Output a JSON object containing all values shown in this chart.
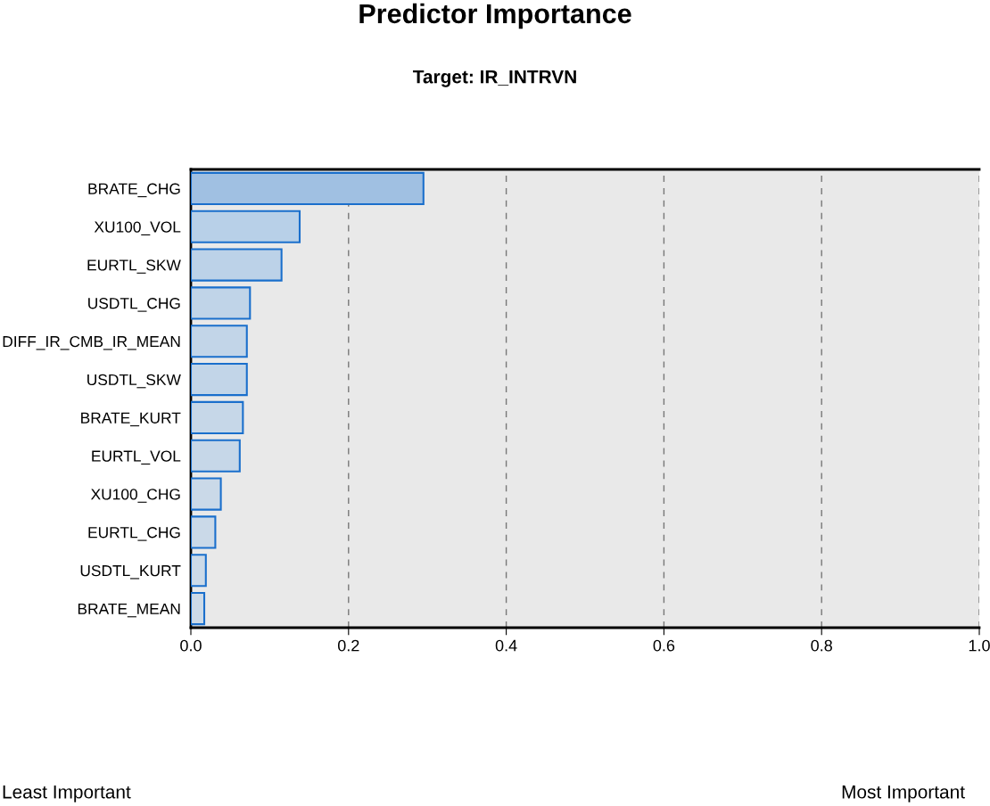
{
  "chart_data": {
    "type": "bar",
    "orientation": "horizontal",
    "title": "Predictor Importance",
    "subtitle": "Target: IR_INTRVN",
    "categories": [
      "BRATE_CHG",
      "XU100_VOL",
      "EURTL_SKW",
      "USDTL_CHG",
      "DIFF_IR_CMB_IR_MEAN",
      "USDTL_SKW",
      "BRATE_KURT",
      "EURTL_VOL",
      "XU100_CHG",
      "EURTL_CHG",
      "USDTL_KURT",
      "BRATE_MEAN"
    ],
    "values": [
      0.295,
      0.138,
      0.115,
      0.075,
      0.071,
      0.071,
      0.066,
      0.062,
      0.038,
      0.031,
      0.019,
      0.017
    ],
    "colors": [
      "#a0c0e2",
      "#b8d0e8",
      "#bcd2e8",
      "#c0d4e8",
      "#c2d5e8",
      "#c2d5e8",
      "#c6d7e8",
      "#c6d7e8",
      "#cad9e8",
      "#cad9e8",
      "#ccdae8",
      "#ccdae8"
    ],
    "xlim": [
      0.0,
      1.0
    ],
    "xticks": [
      {
        "value": 0.0,
        "label": "0.0"
      },
      {
        "value": 0.2,
        "label": "0.2"
      },
      {
        "value": 0.4,
        "label": "0.4"
      },
      {
        "value": 0.6,
        "label": "0.6"
      },
      {
        "value": 0.8,
        "label": "0.8"
      },
      {
        "value": 1.0,
        "label": "1.0"
      }
    ],
    "grid": "x",
    "annotations": [
      "Least Important",
      "Most Important"
    ]
  }
}
